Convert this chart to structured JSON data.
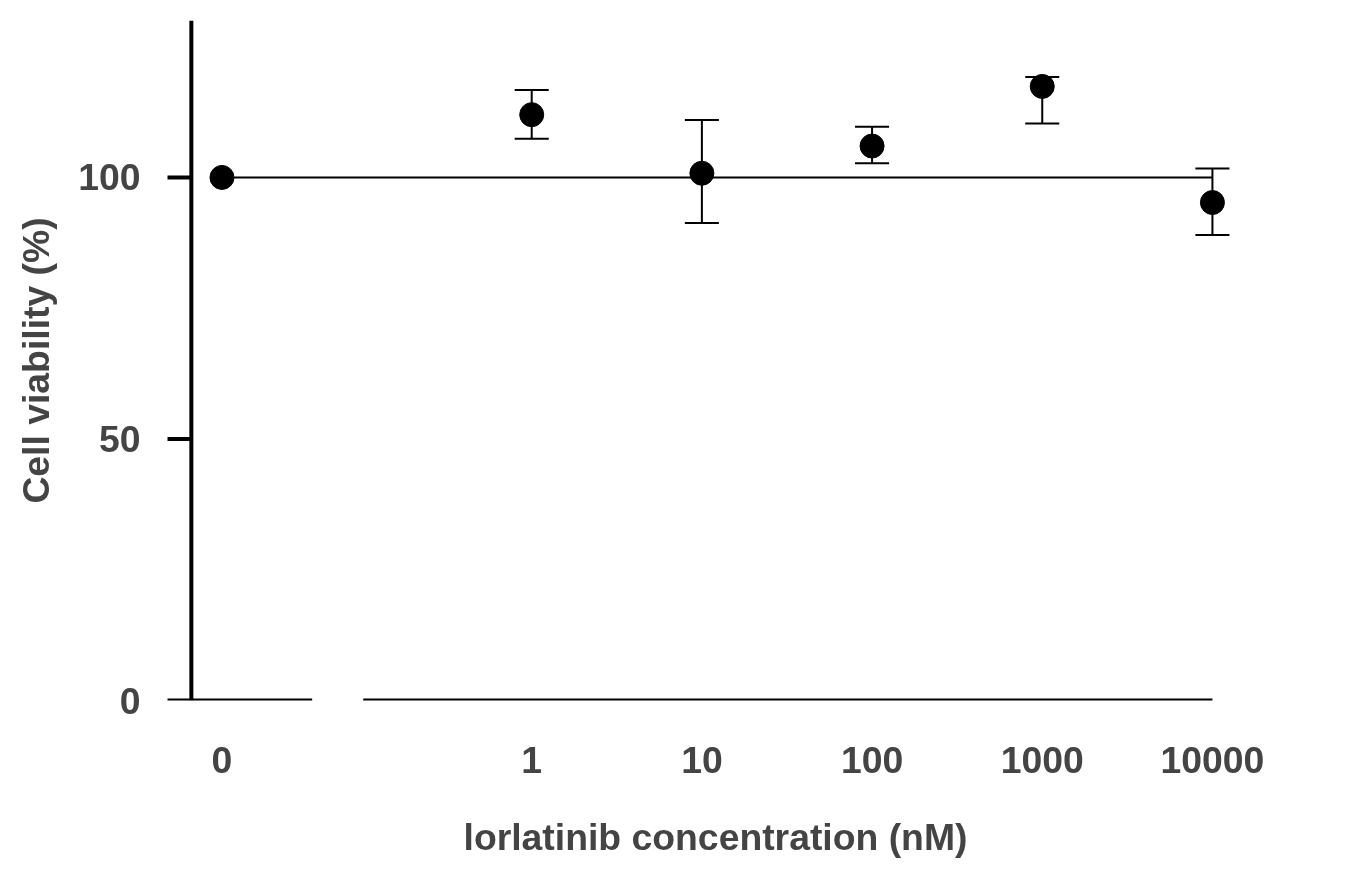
{
  "chart_data": {
    "type": "scatter",
    "xlabel": "lorlatinib concentration (nM)",
    "ylabel": "Cell viability (%)",
    "categories": [
      "0",
      "1",
      "10",
      "100",
      "1000",
      "10000"
    ],
    "values": [
      100,
      112,
      100.8,
      106,
      117.4,
      95.2
    ],
    "errors": [
      null,
      [
        107.4,
        116.7
      ],
      [
        91.3,
        111.0
      ],
      [
        102.7,
        109.7
      ],
      [
        110.3,
        119.2
      ],
      [
        89.0,
        101.7
      ]
    ],
    "color": "#000000",
    "marker": "circle",
    "ylim": [
      0,
      130
    ],
    "yticks": [
      0,
      50,
      100
    ],
    "ref_lines": [
      {
        "axis": "y",
        "value": 100,
        "label": null,
        "color": "#000000",
        "line_style": "solid"
      }
    ],
    "grid": false
  }
}
